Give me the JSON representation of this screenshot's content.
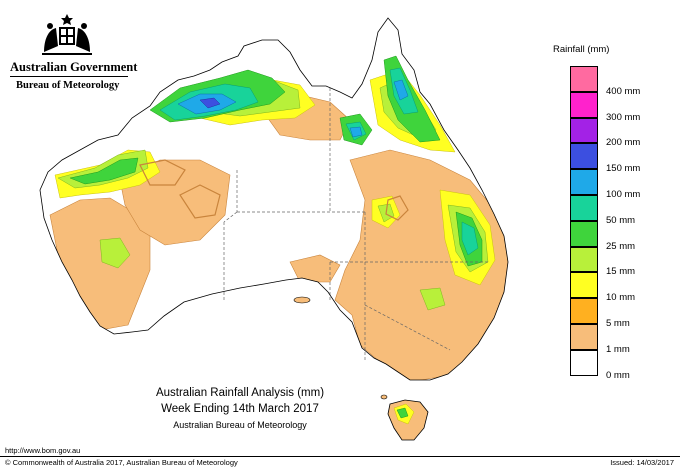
{
  "header": {
    "government": "Australian Government",
    "bureau": "Bureau of Meteorology"
  },
  "legend": {
    "title": "Rainfall (mm)",
    "items": [
      {
        "label": "",
        "color": "#ff6aa0"
      },
      {
        "label": "400 mm",
        "color": "#ff22cc"
      },
      {
        "label": "300 mm",
        "color": "#a322e6"
      },
      {
        "label": "200 mm",
        "color": "#3c4fe0"
      },
      {
        "label": "150 mm",
        "color": "#1fa9e8"
      },
      {
        "label": "100 mm",
        "color": "#18d39a"
      },
      {
        "label": "50 mm",
        "color": "#3fd43c"
      },
      {
        "label": "25 mm",
        "color": "#b8f03a"
      },
      {
        "label": "15 mm",
        "color": "#ffff22"
      },
      {
        "label": "10 mm",
        "color": "#ffb020"
      },
      {
        "label": "5 mm",
        "color": "#f7bd7a"
      },
      {
        "label": "1 mm",
        "color": "#ffffff"
      },
      {
        "label": "0 mm",
        "color": ""
      }
    ]
  },
  "caption": {
    "line1": "Australian Rainfall Analysis (mm)",
    "line2": "Week Ending 14th March 2017",
    "line3": "Australian Bureau of Meteorology"
  },
  "footer": {
    "url": "http://www.bom.gov.au",
    "copyright": "© Commonwealth of Australia 2017, Australian Bureau of Meteorology",
    "issued": "Issued: 14/03/2017"
  }
}
